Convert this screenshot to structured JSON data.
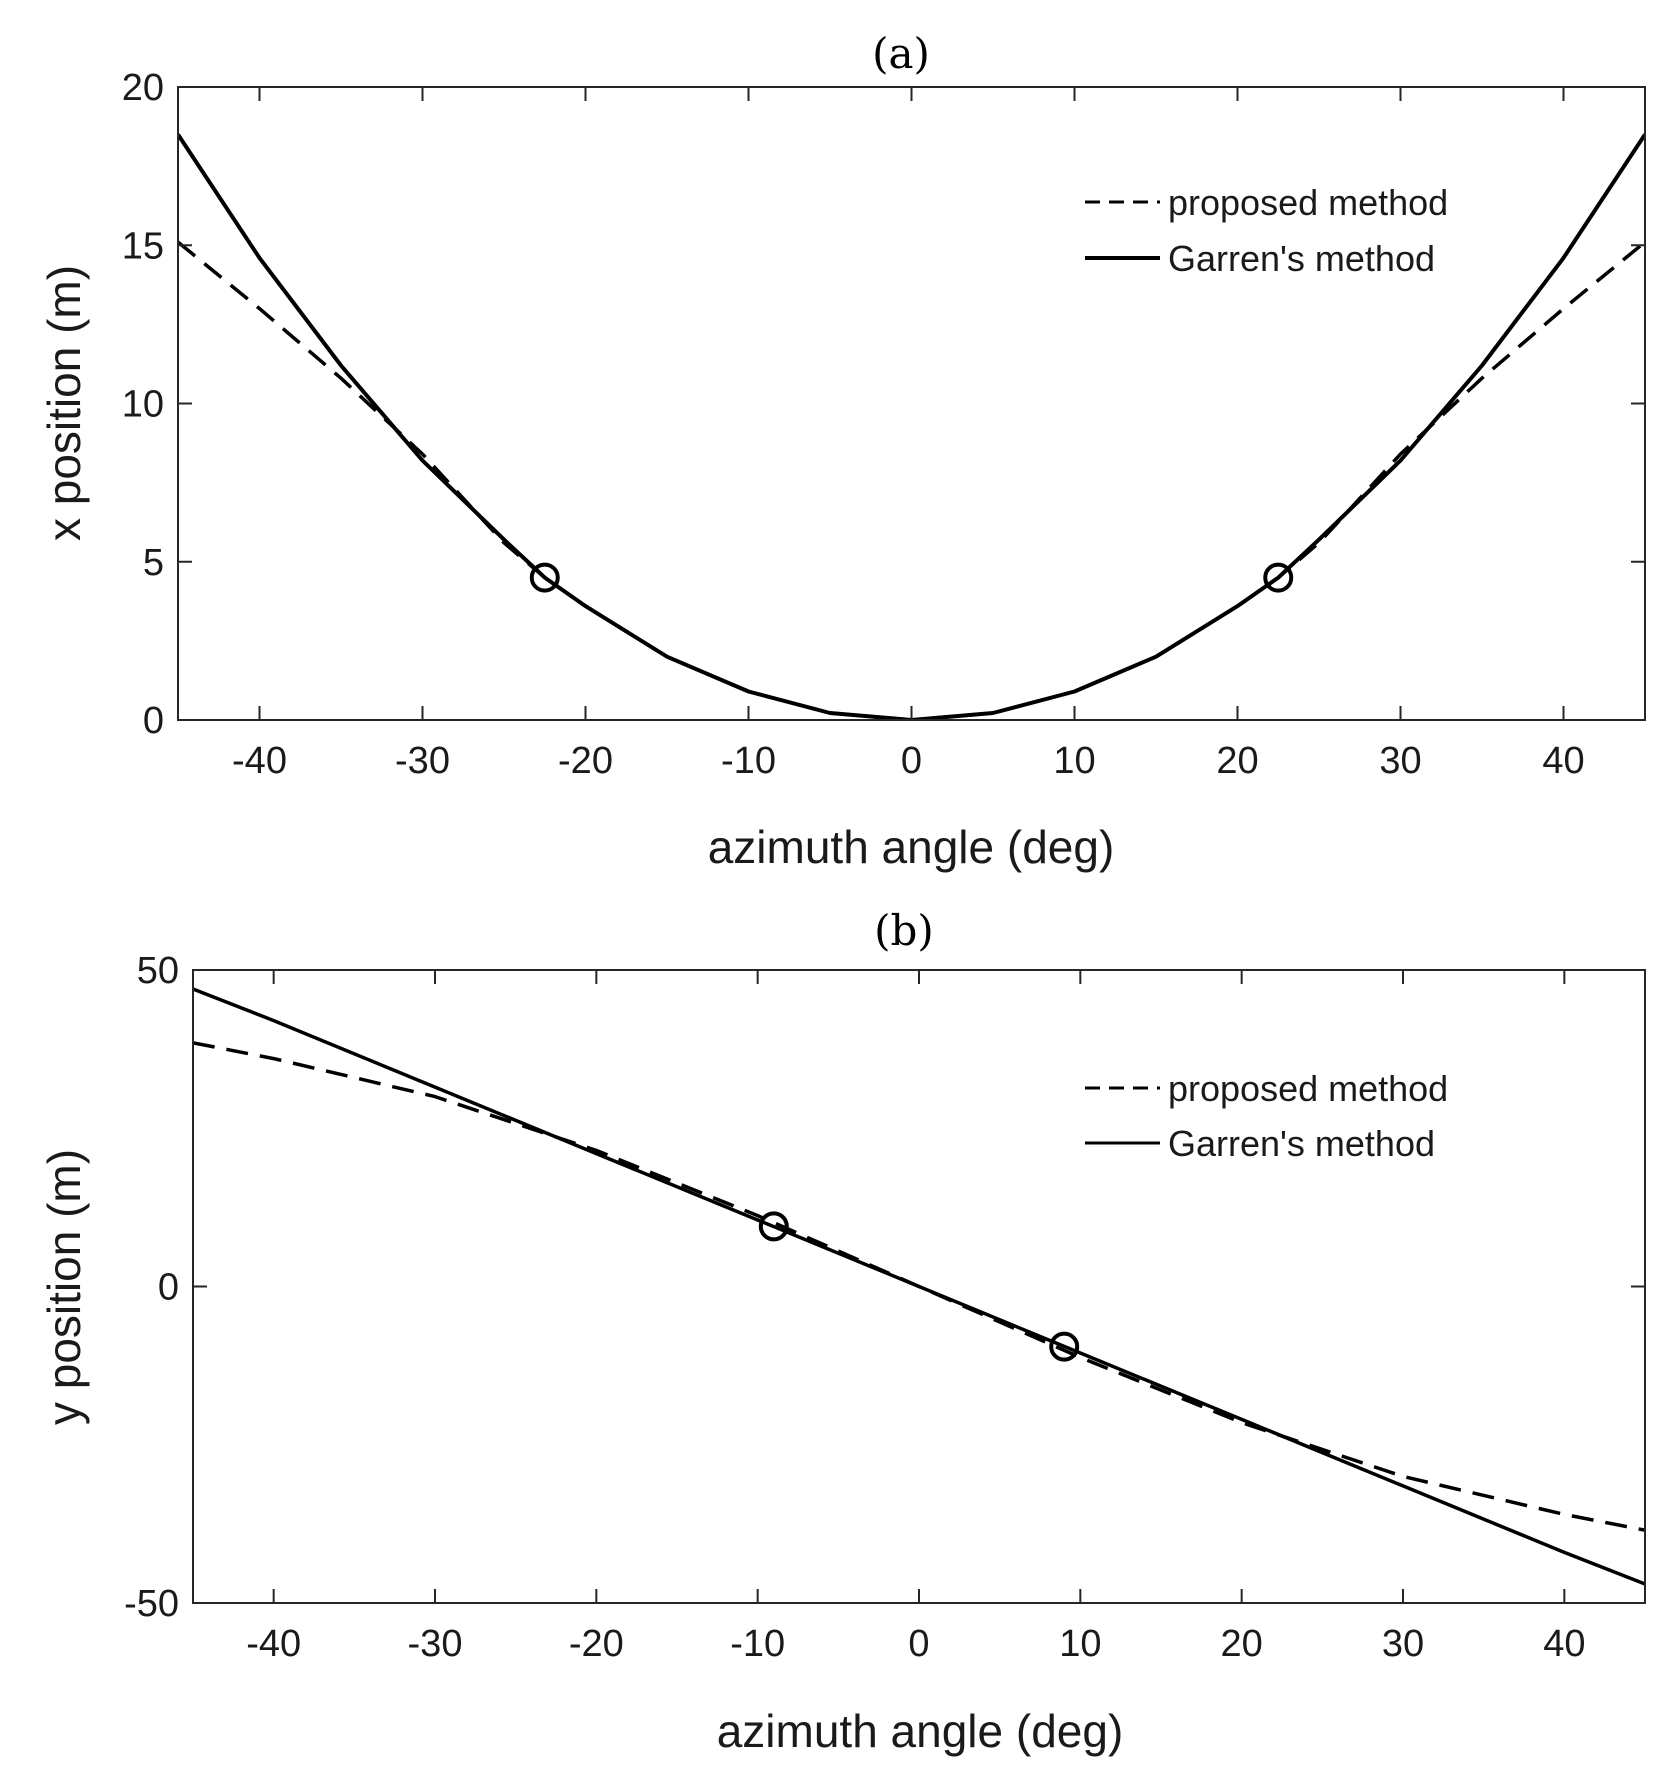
{
  "chart_data": [
    {
      "type": "line",
      "title": "(a)",
      "xlabel": "azimuth angle (deg)",
      "ylabel": "x position (m)",
      "xlim": [
        -45,
        45
      ],
      "ylim": [
        0,
        20
      ],
      "xticks": [
        -40,
        -30,
        -20,
        -10,
        0,
        10,
        20,
        30,
        40
      ],
      "yticks": [
        0,
        5,
        10,
        15,
        20
      ],
      "grid": false,
      "legend_position": "top-right",
      "series": [
        {
          "name": "proposed method",
          "style": "dashed",
          "color": "#000000",
          "x": [
            -45,
            -40,
            -35,
            -30,
            -25,
            -22.5,
            -20,
            -15,
            -10,
            -5,
            0,
            5,
            10,
            15,
            20,
            22.5,
            25,
            30,
            35,
            40,
            45
          ],
          "y": [
            15.1,
            13.0,
            10.8,
            8.4,
            5.6,
            4.5,
            3.6,
            2.0,
            0.9,
            0.22,
            0,
            0.22,
            0.9,
            2.0,
            3.6,
            4.5,
            5.6,
            8.4,
            10.8,
            13.0,
            15.1
          ]
        },
        {
          "name": "Garren's method",
          "style": "solid",
          "color": "#000000",
          "x": [
            -45,
            -40,
            -35,
            -30,
            -25,
            -22.5,
            -20,
            -15,
            -10,
            -5,
            0,
            5,
            10,
            15,
            20,
            22.5,
            25,
            30,
            35,
            40,
            45
          ],
          "y": [
            18.5,
            14.6,
            11.2,
            8.2,
            5.7,
            4.5,
            3.6,
            2.0,
            0.9,
            0.22,
            0,
            0.22,
            0.9,
            2.0,
            3.6,
            4.5,
            5.7,
            8.2,
            11.2,
            14.6,
            18.5
          ]
        }
      ],
      "markers": {
        "shape": "circle",
        "x": [
          -22.5,
          22.5
        ],
        "y": [
          4.5,
          4.5
        ]
      }
    },
    {
      "type": "line",
      "title": "(b)",
      "xlabel": "azimuth angle (deg)",
      "ylabel": "y position (m)",
      "xlim": [
        -45,
        45
      ],
      "ylim": [
        -50,
        50
      ],
      "xticks": [
        -40,
        -30,
        -20,
        -10,
        0,
        10,
        20,
        30,
        40
      ],
      "yticks": [
        -50,
        0,
        50
      ],
      "grid": false,
      "legend_position": "top-right",
      "series": [
        {
          "name": "proposed method",
          "style": "dashed",
          "color": "#000000",
          "x": [
            -45,
            -40,
            -30,
            -20,
            -10,
            0,
            10,
            20,
            30,
            40,
            45
          ],
          "y": [
            38.5,
            36.0,
            30.0,
            21.5,
            11.2,
            0,
            -11.2,
            -21.5,
            -30.0,
            -36.0,
            -38.5
          ]
        },
        {
          "name": "Garren's method",
          "style": "solid",
          "color": "#000000",
          "x": [
            -45,
            -40,
            -30,
            -20,
            -10,
            0,
            10,
            20,
            30,
            40,
            45
          ],
          "y": [
            47.0,
            42.0,
            31.5,
            21.0,
            10.5,
            0,
            -10.5,
            -21.0,
            -31.5,
            -42.0,
            -47.0
          ]
        }
      ],
      "markers": {
        "shape": "circle",
        "x": [
          -9,
          9
        ],
        "y": [
          9.5,
          -9.5
        ]
      }
    }
  ]
}
